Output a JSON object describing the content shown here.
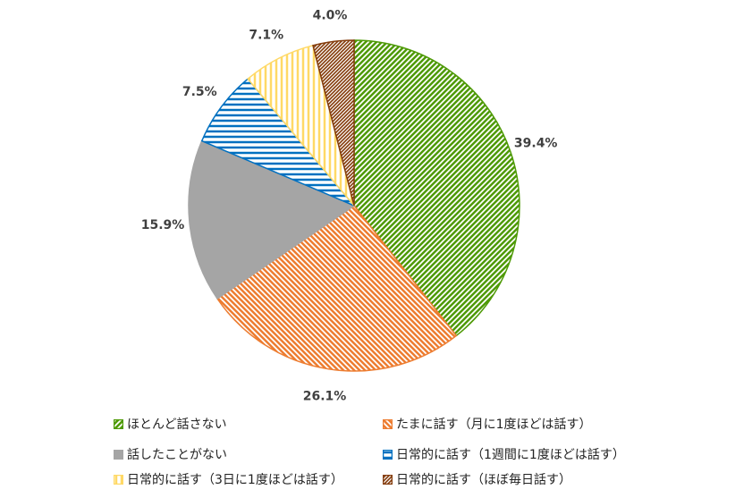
{
  "chart_data": {
    "type": "pie",
    "start": "top",
    "direction": "clockwise",
    "slices": [
      {
        "label": "ほとんど話さない",
        "value": 39.4,
        "value_label": "39.4%",
        "color": "#4e9a06",
        "pattern": "diagonal-up"
      },
      {
        "label": "たまに話す（月に1度ほどは話す）",
        "value": 26.1,
        "value_label": "26.1%",
        "color": "#ed7d31",
        "pattern": "diagonal-down"
      },
      {
        "label": "話したことがない",
        "value": 15.9,
        "value_label": "15.9%",
        "color": "#a5a5a5",
        "pattern": "solid"
      },
      {
        "label": "日常的に話す（1週間に1度ほどは話す）",
        "value": 7.5,
        "value_label": "7.5%",
        "color": "#0070c0",
        "pattern": "horizontal"
      },
      {
        "label": "日常的に話す（3日に1度ほどは話す）",
        "value": 7.1,
        "value_label": "7.1%",
        "color": "#ffd966",
        "pattern": "vertical"
      },
      {
        "label": "日常的に話す（ほぼ毎日話す）",
        "value": 4.0,
        "value_label": "4.0%",
        "color": "#843c0c",
        "pattern": "diagonal-up-dense"
      }
    ],
    "legend_position": "bottom"
  }
}
